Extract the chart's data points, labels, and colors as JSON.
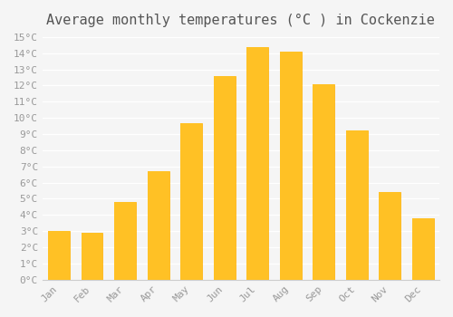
{
  "title": "Average monthly temperatures (°C ) in Cockenzie",
  "months": [
    "Jan",
    "Feb",
    "Mar",
    "Apr",
    "May",
    "Jun",
    "Jul",
    "Aug",
    "Sep",
    "Oct",
    "Nov",
    "Dec"
  ],
  "values": [
    3.0,
    2.9,
    4.8,
    6.7,
    9.7,
    12.6,
    14.4,
    14.1,
    12.1,
    9.2,
    5.4,
    3.8
  ],
  "bar_color_top": "#FFC125",
  "bar_color_bottom": "#FFB000",
  "background_color": "#F5F5F5",
  "grid_color": "#FFFFFF",
  "ylim": [
    0,
    15
  ],
  "yticks": [
    0,
    1,
    2,
    3,
    4,
    5,
    6,
    7,
    8,
    9,
    10,
    11,
    12,
    13,
    14,
    15
  ],
  "title_fontsize": 11,
  "tick_fontsize": 8,
  "font_family": "monospace"
}
